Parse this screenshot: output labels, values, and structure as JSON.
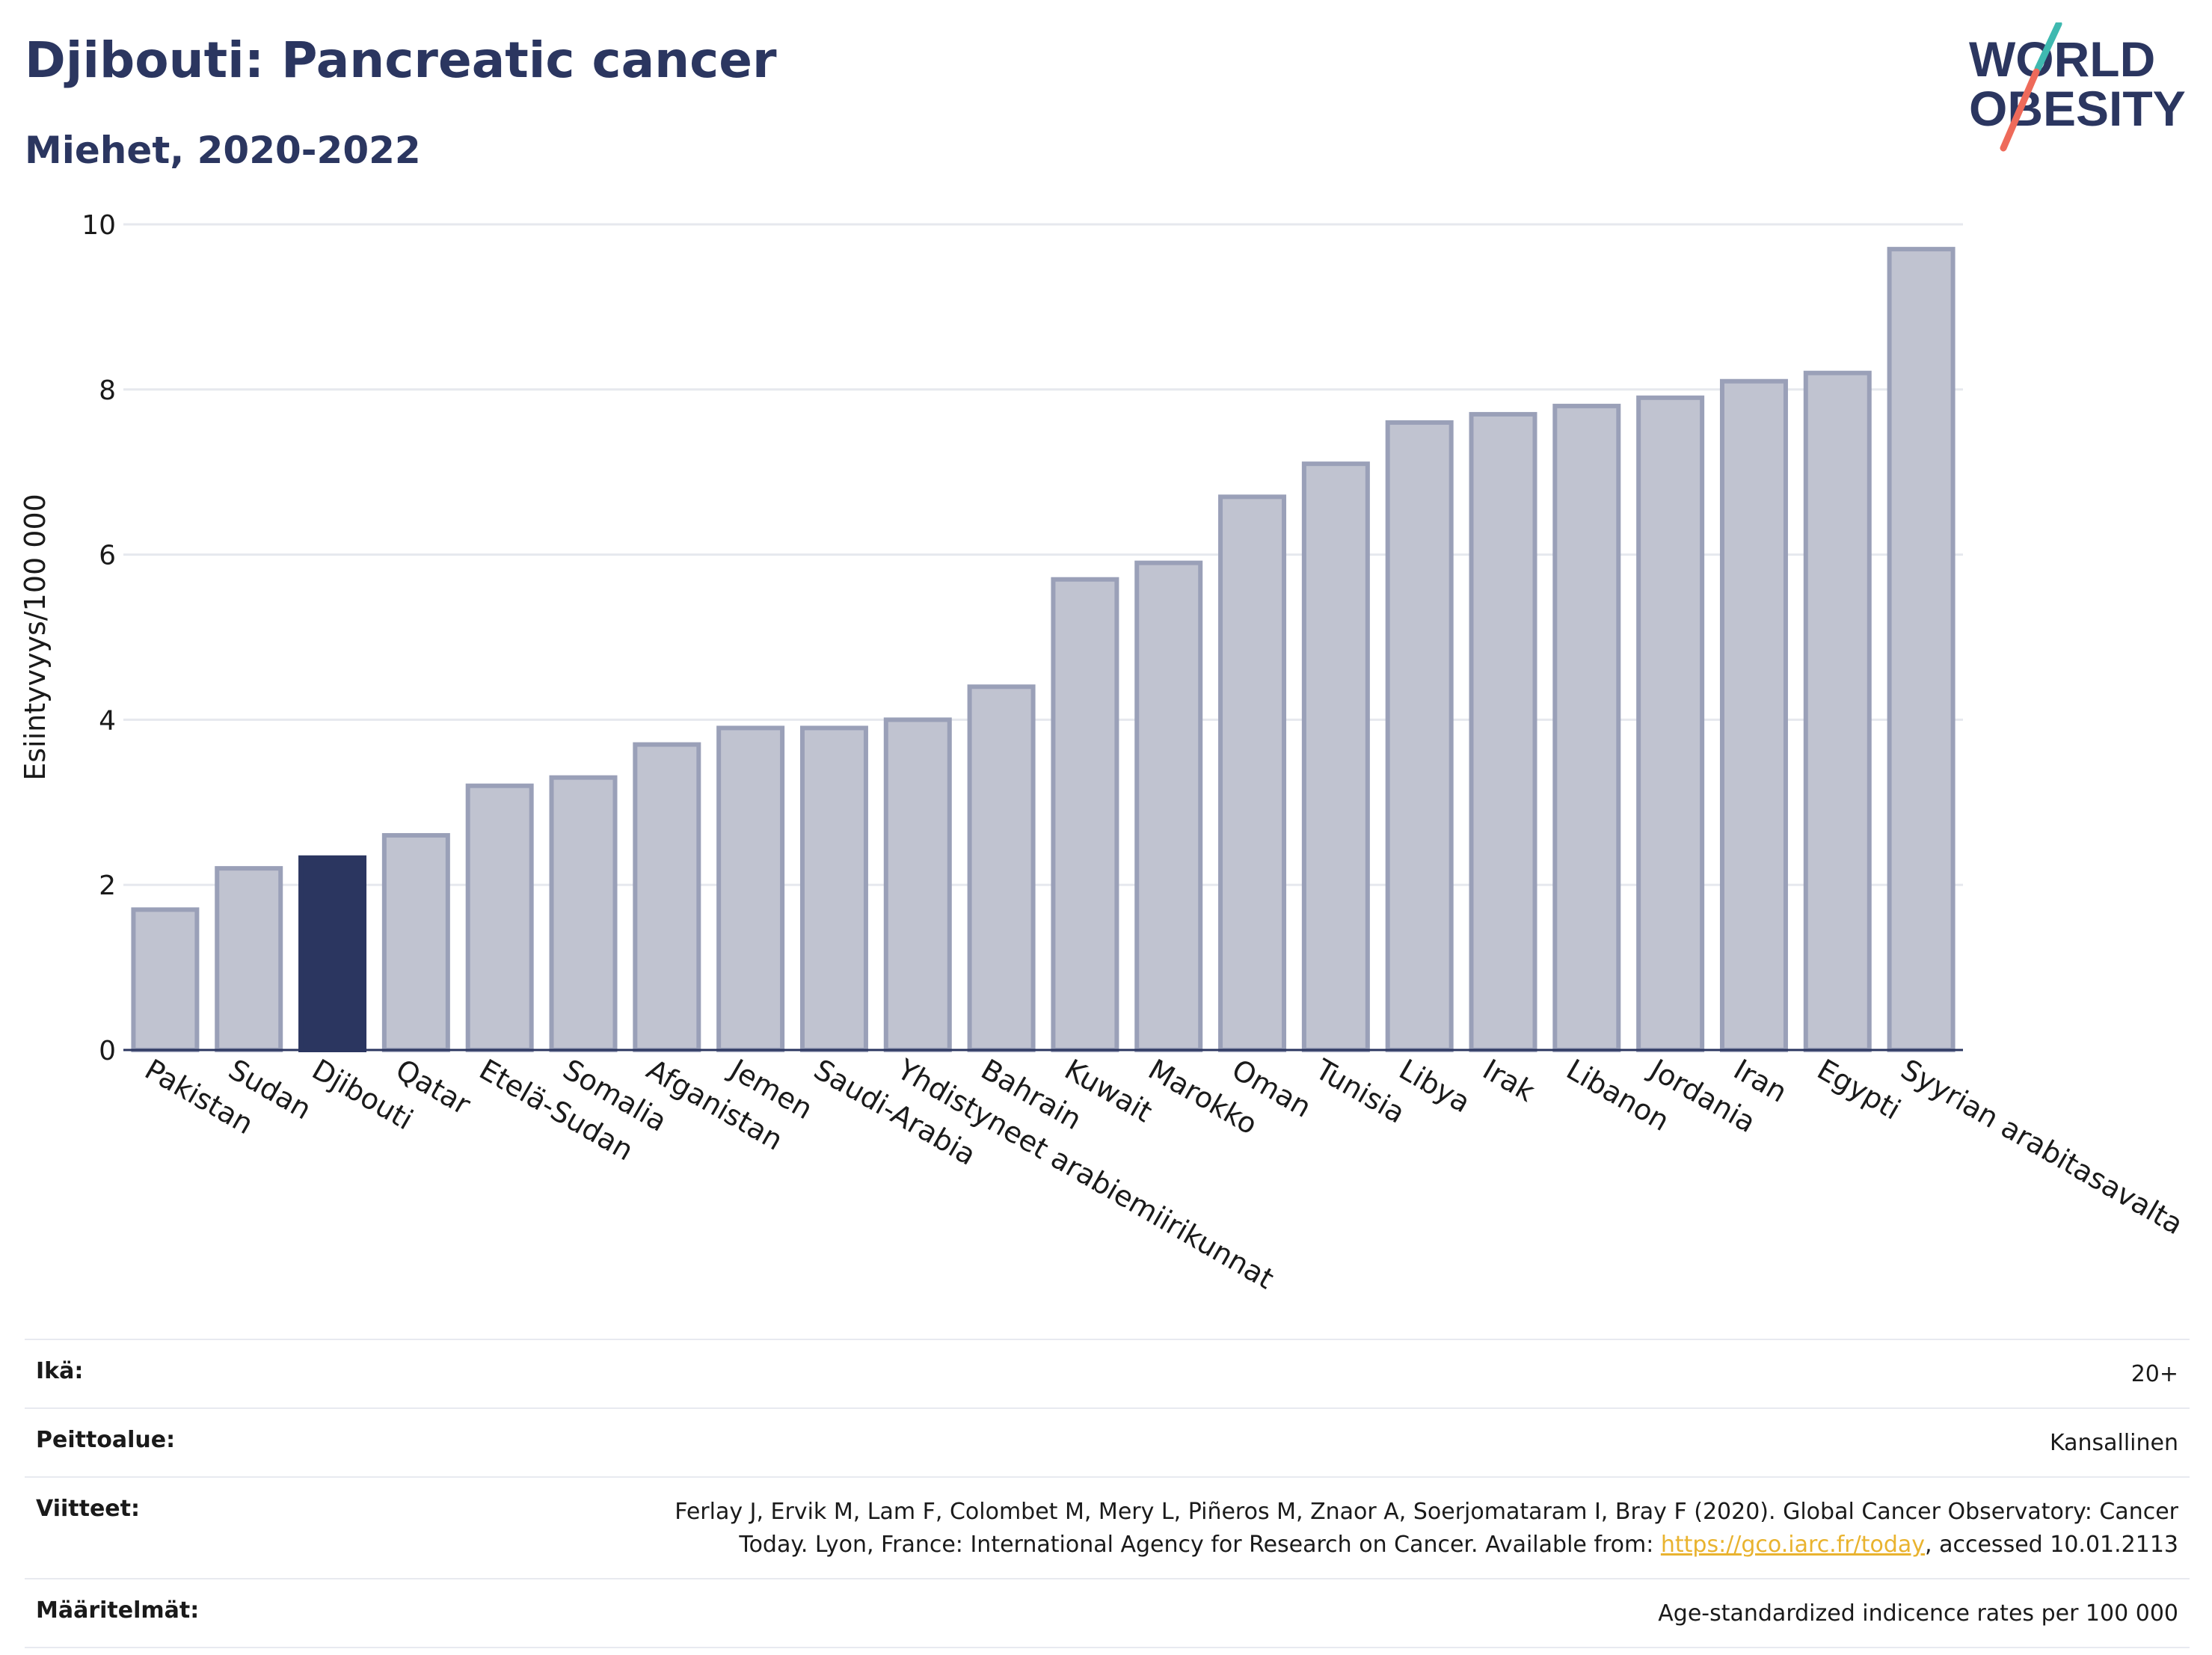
{
  "header": {
    "title": "Djibouti: Pancreatic cancer",
    "subtitle": "Miehet, 2020-2022"
  },
  "logo": {
    "line1": "WORLD",
    "line2": "OBESITY"
  },
  "chart_data": {
    "type": "bar",
    "title": "Djibouti: Pancreatic cancer",
    "subtitle": "Miehet, 2020-2022",
    "ylabel": "Esiintyvyys/100 000",
    "xlabel": "",
    "ylim": [
      0,
      10
    ],
    "yticks": [
      0,
      2,
      4,
      6,
      8,
      10
    ],
    "grid": true,
    "highlight": "Djibouti",
    "colors": {
      "bar": "#c0c3d0",
      "bar_edge": "#9aa0b8",
      "highlight": "#2b3660",
      "grid": "#e6e8ee",
      "axis": "#2b3660"
    },
    "categories": [
      "Pakistan",
      "Sudan",
      "Djibouti",
      "Qatar",
      "Etelä-Sudan",
      "Somalia",
      "Afganistan",
      "Jemen",
      "Saudi-Arabia",
      "Yhdistyneet arabiemiirikunnat",
      "Bahrain",
      "Kuwait",
      "Marokko",
      "Oman",
      "Tunisia",
      "Libya",
      "Irak",
      "Libanon",
      "Jordania",
      "Iran",
      "Egypti",
      "Syyrian arabitasavalta"
    ],
    "values": [
      1.7,
      2.2,
      2.33,
      2.6,
      3.2,
      3.3,
      3.7,
      3.9,
      3.9,
      4.0,
      4.4,
      5.7,
      5.9,
      6.7,
      7.1,
      7.6,
      7.7,
      7.8,
      7.9,
      8.1,
      8.2,
      9.7
    ]
  },
  "meta": {
    "age_label": "Ikä:",
    "age_value": "20+",
    "coverage_label": "Peittoalue:",
    "coverage_value": "Kansallinen",
    "refs_label": "Viitteet:",
    "refs_line1": "Ferlay J, Ervik M, Lam F, Colombet M, Mery L, Piñeros M, Znaor A, Soerjomataram I, Bray F (2020). Global Cancer Observatory: Cancer",
    "refs_line2_pre": "Today. Lyon, France: International Agency for Research on Cancer. Available from: ",
    "refs_link": "https://gco.iarc.fr/today",
    "refs_line2_post": ", accessed 10.01.2113",
    "defs_label": "Määritelmät:",
    "defs_value": "Age-standardized indicence rates per 100 000"
  }
}
